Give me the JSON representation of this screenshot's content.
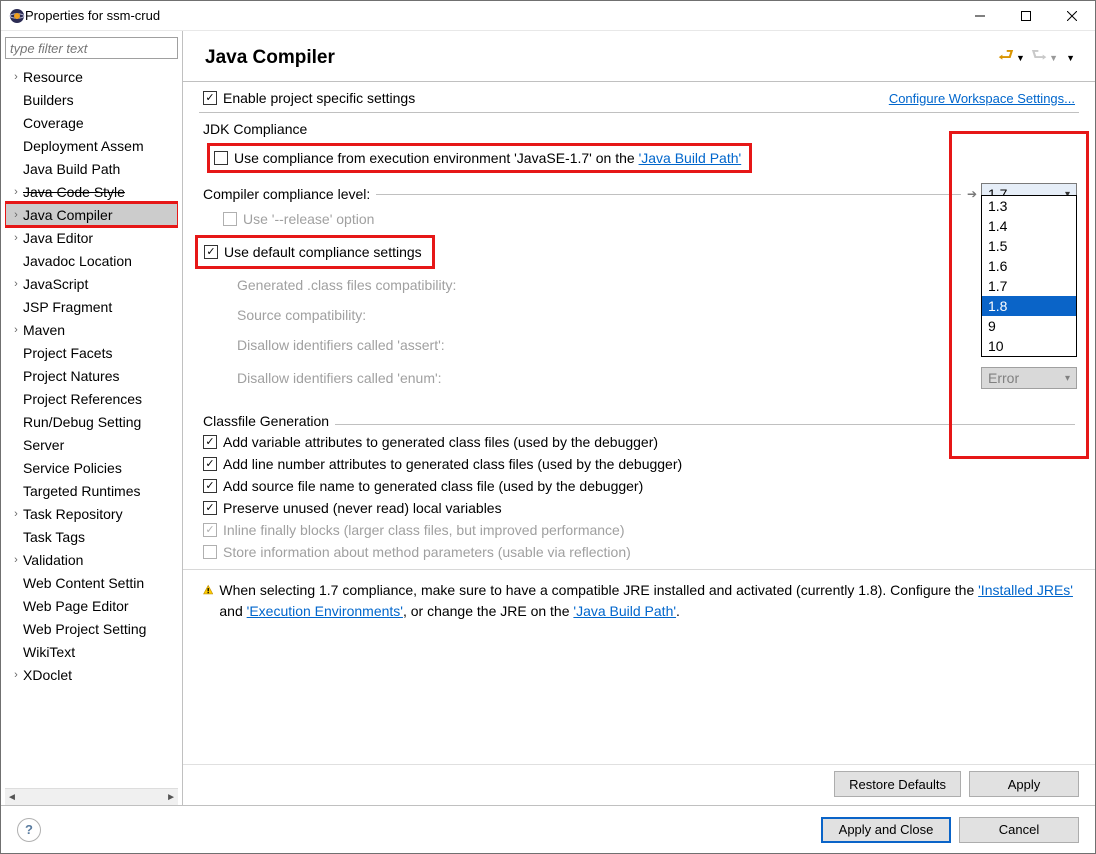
{
  "window": {
    "title": "Properties for ssm-crud"
  },
  "sidebar": {
    "filter_placeholder": "type filter text",
    "items": [
      {
        "label": "Resource",
        "exp": true
      },
      {
        "label": "Builders",
        "exp": false
      },
      {
        "label": "Coverage",
        "exp": false
      },
      {
        "label": "Deployment Assem",
        "exp": false
      },
      {
        "label": "Java Build Path",
        "exp": false
      },
      {
        "label": "Java Code Style",
        "exp": true,
        "strike": true
      },
      {
        "label": "Java Compiler",
        "exp": true,
        "selected": true
      },
      {
        "label": "Java Editor",
        "exp": true
      },
      {
        "label": "Javadoc Location",
        "exp": false
      },
      {
        "label": "JavaScript",
        "exp": true
      },
      {
        "label": "JSP Fragment",
        "exp": false
      },
      {
        "label": "Maven",
        "exp": true
      },
      {
        "label": "Project Facets",
        "exp": false
      },
      {
        "label": "Project Natures",
        "exp": false
      },
      {
        "label": "Project References",
        "exp": false
      },
      {
        "label": "Run/Debug Setting",
        "exp": false
      },
      {
        "label": "Server",
        "exp": false
      },
      {
        "label": "Service Policies",
        "exp": false
      },
      {
        "label": "Targeted Runtimes",
        "exp": false
      },
      {
        "label": "Task Repository",
        "exp": true
      },
      {
        "label": "Task Tags",
        "exp": false
      },
      {
        "label": "Validation",
        "exp": true
      },
      {
        "label": "Web Content Settin",
        "exp": false
      },
      {
        "label": "Web Page Editor",
        "exp": false
      },
      {
        "label": "Web Project Setting",
        "exp": false
      },
      {
        "label": "WikiText",
        "exp": false
      },
      {
        "label": "XDoclet",
        "exp": true
      }
    ]
  },
  "main": {
    "title": "Java Compiler",
    "enable_specific": {
      "checked": true,
      "label": "Enable project specific settings"
    },
    "configure_link": "Configure Workspace Settings...",
    "jdk_section": "JDK Compliance",
    "use_exec_env": {
      "checked": false,
      "prefix": "Use compliance from execution environment 'JavaSE-1.7' on the ",
      "link": "'Java Build Path'"
    },
    "compliance_level_label": "Compiler compliance level:",
    "compliance_level_value": "1.7",
    "compliance_options": [
      "1.3",
      "1.4",
      "1.5",
      "1.6",
      "1.7",
      "1.8",
      "9",
      "10"
    ],
    "compliance_highlight": "1.8",
    "use_release": {
      "checked": false,
      "label": "Use '--release' option",
      "disabled": true
    },
    "use_default": {
      "checked": true,
      "label": "Use default compliance settings"
    },
    "generated_compat": "Generated .class files compatibility:",
    "source_compat": "Source compatibility:",
    "disallow_assert": "Disallow identifiers called 'assert':",
    "disallow_enum": "Disallow identifiers called 'enum':",
    "error_combo": "Error",
    "classfile_section": "Classfile Generation",
    "cf": [
      {
        "checked": true,
        "label": "Add variable attributes to generated class files (used by the debugger)"
      },
      {
        "checked": true,
        "label": "Add line number attributes to generated class files (used by the debugger)"
      },
      {
        "checked": true,
        "label": "Add source file name to generated class file (used by the debugger)"
      },
      {
        "checked": true,
        "label": "Preserve unused (never read) local variables"
      },
      {
        "checked": true,
        "label": "Inline finally blocks (larger class files, but improved performance)",
        "disabled": true
      },
      {
        "checked": false,
        "label": "Store information about method parameters (usable via reflection)",
        "disabled": true
      }
    ],
    "warning": {
      "pre": "When selecting 1.7 compliance, make sure to have a compatible JRE installed and activated (currently 1.8). Configure the ",
      "link1": "'Installed JREs'",
      "mid1": " and ",
      "link2": "'Execution Environments'",
      "mid2": ", or change the JRE on the ",
      "link3": "'Java Build Path'",
      "post": "."
    },
    "buttons": {
      "restore": "Restore Defaults",
      "apply": "Apply",
      "apply_close": "Apply and Close",
      "cancel": "Cancel"
    }
  },
  "colors": {
    "highlight_red": "#e61717",
    "selection_blue": "#0a64c8",
    "link": "#0066cc",
    "disabled": "#a0a0a0"
  }
}
